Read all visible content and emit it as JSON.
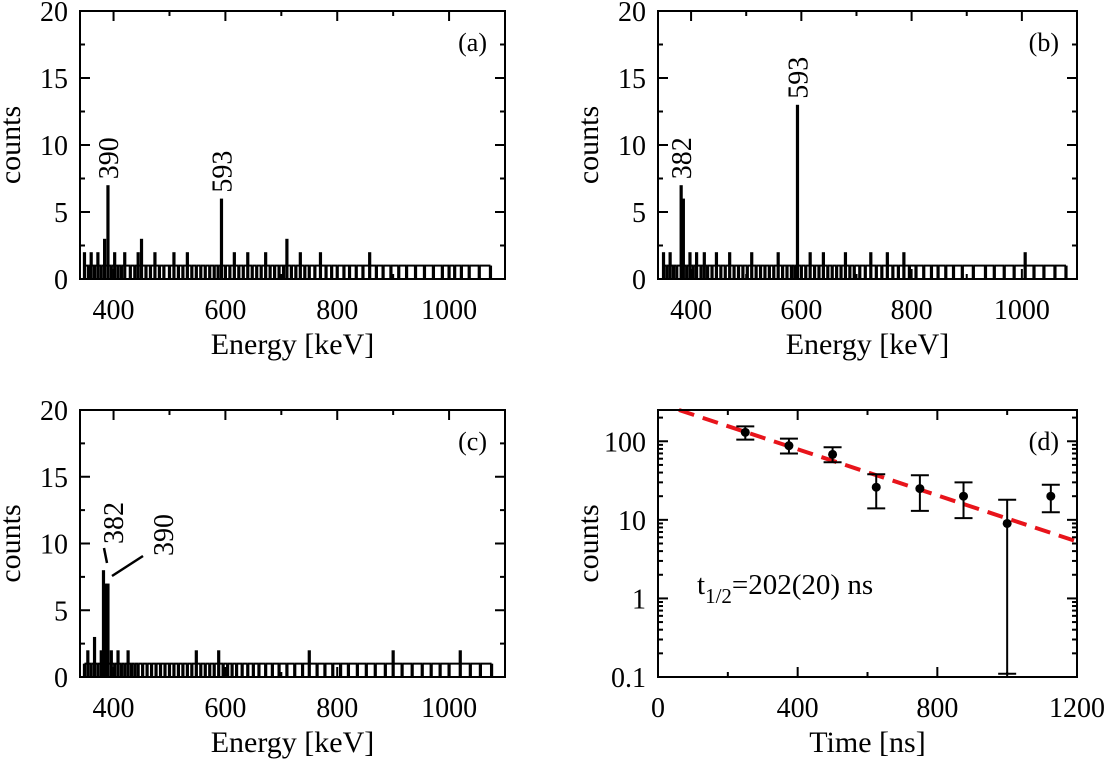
{
  "colors": {
    "ink": "#000000",
    "fit": "#e8141b"
  },
  "chart_data": [
    {
      "id": "a",
      "type": "bar",
      "panel_label": "(a)",
      "xlabel": "Energy [keV]",
      "ylabel": "counts",
      "xlim": [
        340,
        1100
      ],
      "ylim": [
        0,
        20
      ],
      "xticks": [
        400,
        600,
        800,
        1000
      ],
      "yticks": [
        0,
        5,
        10,
        15,
        20
      ],
      "peak_labels": [
        {
          "text": "390",
          "x": 390,
          "y": 7
        },
        {
          "text": "593",
          "x": 593,
          "y": 6
        }
      ],
      "spectrum": [
        [
          348,
          2
        ],
        [
          355,
          1
        ],
        [
          360,
          2
        ],
        [
          366,
          1
        ],
        [
          372,
          2
        ],
        [
          378,
          1
        ],
        [
          384,
          3
        ],
        [
          390,
          7
        ],
        [
          396,
          1
        ],
        [
          402,
          2
        ],
        [
          408,
          1
        ],
        [
          414,
          1
        ],
        [
          420,
          2
        ],
        [
          430,
          1
        ],
        [
          438,
          1
        ],
        [
          444,
          2
        ],
        [
          450,
          3
        ],
        [
          458,
          1
        ],
        [
          466,
          1
        ],
        [
          474,
          2
        ],
        [
          482,
          1
        ],
        [
          490,
          1
        ],
        [
          500,
          1
        ],
        [
          508,
          2
        ],
        [
          516,
          1
        ],
        [
          524,
          1
        ],
        [
          532,
          2
        ],
        [
          540,
          1
        ],
        [
          548,
          1
        ],
        [
          556,
          1
        ],
        [
          564,
          1
        ],
        [
          572,
          1
        ],
        [
          580,
          1
        ],
        [
          587,
          1
        ],
        [
          593,
          6
        ],
        [
          600,
          1
        ],
        [
          608,
          1
        ],
        [
          616,
          2
        ],
        [
          624,
          1
        ],
        [
          632,
          1
        ],
        [
          640,
          2
        ],
        [
          648,
          1
        ],
        [
          656,
          1
        ],
        [
          664,
          1
        ],
        [
          672,
          2
        ],
        [
          680,
          1
        ],
        [
          688,
          1
        ],
        [
          696,
          1
        ],
        [
          704,
          1
        ],
        [
          710,
          3
        ],
        [
          718,
          1
        ],
        [
          726,
          1
        ],
        [
          734,
          2
        ],
        [
          742,
          1
        ],
        [
          750,
          1
        ],
        [
          760,
          1
        ],
        [
          770,
          2
        ],
        [
          780,
          1
        ],
        [
          790,
          1
        ],
        [
          800,
          1
        ],
        [
          812,
          1
        ],
        [
          822,
          1
        ],
        [
          834,
          1
        ],
        [
          846,
          1
        ],
        [
          858,
          2
        ],
        [
          870,
          1
        ],
        [
          882,
          1
        ],
        [
          896,
          1
        ],
        [
          910,
          1
        ],
        [
          924,
          1
        ],
        [
          940,
          1
        ],
        [
          956,
          1
        ],
        [
          972,
          1
        ],
        [
          988,
          1
        ],
        [
          1000,
          1
        ],
        [
          1010,
          1
        ],
        [
          1022,
          1
        ],
        [
          1036,
          1
        ],
        [
          1054,
          1
        ],
        [
          1074,
          1
        ]
      ]
    },
    {
      "id": "b",
      "type": "bar",
      "panel_label": "(b)",
      "xlabel": "Energy [keV]",
      "ylabel": "counts",
      "xlim": [
        340,
        1100
      ],
      "ylim": [
        0,
        20
      ],
      "xticks": [
        400,
        600,
        800,
        1000
      ],
      "yticks": [
        0,
        5,
        10,
        15,
        20
      ],
      "peak_labels": [
        {
          "text": "382",
          "x": 382,
          "y": 7
        },
        {
          "text": "593",
          "x": 593,
          "y": 13
        }
      ],
      "spectrum": [
        [
          350,
          2
        ],
        [
          356,
          1
        ],
        [
          362,
          2
        ],
        [
          368,
          1
        ],
        [
          374,
          1
        ],
        [
          382,
          7
        ],
        [
          386,
          6
        ],
        [
          392,
          1
        ],
        [
          398,
          2
        ],
        [
          404,
          1
        ],
        [
          410,
          2
        ],
        [
          418,
          1
        ],
        [
          424,
          2
        ],
        [
          430,
          1
        ],
        [
          438,
          1
        ],
        [
          446,
          2
        ],
        [
          454,
          1
        ],
        [
          462,
          1
        ],
        [
          470,
          2
        ],
        [
          478,
          1
        ],
        [
          486,
          1
        ],
        [
          494,
          1
        ],
        [
          502,
          1
        ],
        [
          510,
          2
        ],
        [
          518,
          1
        ],
        [
          526,
          1
        ],
        [
          534,
          1
        ],
        [
          542,
          1
        ],
        [
          550,
          1
        ],
        [
          558,
          2
        ],
        [
          566,
          1
        ],
        [
          574,
          1
        ],
        [
          582,
          1
        ],
        [
          588,
          1
        ],
        [
          593,
          13
        ],
        [
          600,
          1
        ],
        [
          608,
          1
        ],
        [
          616,
          2
        ],
        [
          624,
          1
        ],
        [
          632,
          1
        ],
        [
          640,
          2
        ],
        [
          648,
          1
        ],
        [
          656,
          1
        ],
        [
          664,
          1
        ],
        [
          672,
          1
        ],
        [
          680,
          2
        ],
        [
          688,
          1
        ],
        [
          696,
          1
        ],
        [
          706,
          1
        ],
        [
          716,
          1
        ],
        [
          726,
          2
        ],
        [
          736,
          1
        ],
        [
          746,
          1
        ],
        [
          756,
          2
        ],
        [
          766,
          1
        ],
        [
          776,
          1
        ],
        [
          786,
          2
        ],
        [
          796,
          1
        ],
        [
          808,
          1
        ],
        [
          822,
          1
        ],
        [
          836,
          1
        ],
        [
          848,
          1
        ],
        [
          862,
          1
        ],
        [
          876,
          1
        ],
        [
          892,
          1
        ],
        [
          912,
          1
        ],
        [
          934,
          1
        ],
        [
          950,
          1
        ],
        [
          968,
          1
        ],
        [
          986,
          1
        ],
        [
          1006,
          2
        ],
        [
          1022,
          1
        ],
        [
          1040,
          1
        ],
        [
          1060,
          1
        ],
        [
          1080,
          1
        ]
      ]
    },
    {
      "id": "c",
      "type": "bar",
      "panel_label": "(c)",
      "xlabel": "Energy [keV]",
      "ylabel": "counts",
      "xlim": [
        340,
        1100
      ],
      "ylim": [
        0,
        20
      ],
      "xticks": [
        400,
        600,
        800,
        1000
      ],
      "yticks": [
        0,
        5,
        10,
        15,
        20
      ],
      "peak_labels": [
        {
          "text": "382",
          "x": 382,
          "y": 8
        },
        {
          "text": "390",
          "x": 390,
          "y": 7
        }
      ],
      "spectrum": [
        [
          348,
          1
        ],
        [
          354,
          2
        ],
        [
          360,
          1
        ],
        [
          366,
          3
        ],
        [
          372,
          1
        ],
        [
          378,
          2
        ],
        [
          382,
          8
        ],
        [
          386,
          7
        ],
        [
          390,
          7
        ],
        [
          396,
          2
        ],
        [
          402,
          1
        ],
        [
          408,
          2
        ],
        [
          414,
          1
        ],
        [
          420,
          1
        ],
        [
          426,
          2
        ],
        [
          432,
          1
        ],
        [
          438,
          1
        ],
        [
          444,
          1
        ],
        [
          452,
          1
        ],
        [
          460,
          1
        ],
        [
          468,
          1
        ],
        [
          476,
          1
        ],
        [
          484,
          1
        ],
        [
          492,
          1
        ],
        [
          500,
          1
        ],
        [
          508,
          1
        ],
        [
          516,
          1
        ],
        [
          524,
          1
        ],
        [
          532,
          1
        ],
        [
          540,
          1
        ],
        [
          548,
          2
        ],
        [
          556,
          1
        ],
        [
          564,
          1
        ],
        [
          572,
          1
        ],
        [
          580,
          1
        ],
        [
          588,
          2
        ],
        [
          596,
          1
        ],
        [
          604,
          1
        ],
        [
          612,
          1
        ],
        [
          620,
          1
        ],
        [
          630,
          1
        ],
        [
          640,
          1
        ],
        [
          650,
          1
        ],
        [
          660,
          1
        ],
        [
          672,
          1
        ],
        [
          684,
          1
        ],
        [
          696,
          1
        ],
        [
          710,
          1
        ],
        [
          724,
          1
        ],
        [
          738,
          1
        ],
        [
          750,
          2
        ],
        [
          764,
          1
        ],
        [
          778,
          1
        ],
        [
          792,
          1
        ],
        [
          806,
          1
        ],
        [
          820,
          1
        ],
        [
          836,
          1
        ],
        [
          852,
          1
        ],
        [
          868,
          1
        ],
        [
          886,
          1
        ],
        [
          900,
          2
        ],
        [
          916,
          1
        ],
        [
          934,
          1
        ],
        [
          952,
          1
        ],
        [
          968,
          1
        ],
        [
          984,
          1
        ],
        [
          1000,
          1
        ],
        [
          1020,
          2
        ],
        [
          1038,
          1
        ],
        [
          1056,
          1
        ],
        [
          1076,
          1
        ]
      ]
    },
    {
      "id": "d",
      "type": "scatter",
      "panel_label": "(d)",
      "xlabel": "Time [ns]",
      "ylabel": "counts",
      "yscale": "log",
      "xlim": [
        0,
        1200
      ],
      "ylim": [
        0.1,
        250
      ],
      "xticks": [
        0,
        400,
        800,
        1200
      ],
      "yticks": [
        0.1,
        1,
        10,
        100
      ],
      "ytick_labels": [
        "0.1",
        "1",
        "10",
        "100"
      ],
      "points": [
        {
          "x": 250,
          "y": 130,
          "ylo": 105,
          "yhi": 155
        },
        {
          "x": 375,
          "y": 88,
          "ylo": 70,
          "yhi": 108
        },
        {
          "x": 500,
          "y": 68,
          "ylo": 54,
          "yhi": 84
        },
        {
          "x": 625,
          "y": 26,
          "ylo": 14,
          "yhi": 38
        },
        {
          "x": 750,
          "y": 25,
          "ylo": 13,
          "yhi": 37
        },
        {
          "x": 875,
          "y": 20,
          "ylo": 10.5,
          "yhi": 30
        },
        {
          "x": 1000,
          "y": 9,
          "ylo": 0.11,
          "yhi": 18
        },
        {
          "x": 1125,
          "y": 20,
          "ylo": 12.5,
          "yhi": 28
        }
      ],
      "fit": {
        "label": "exponential fit",
        "x": [
          60,
          1200
        ],
        "y": [
          250,
          5.3
        ]
      },
      "annotation": {
        "t_symbol": "t",
        "t_subscript": "1/2",
        "t_value": "=202(20) ns"
      }
    }
  ]
}
